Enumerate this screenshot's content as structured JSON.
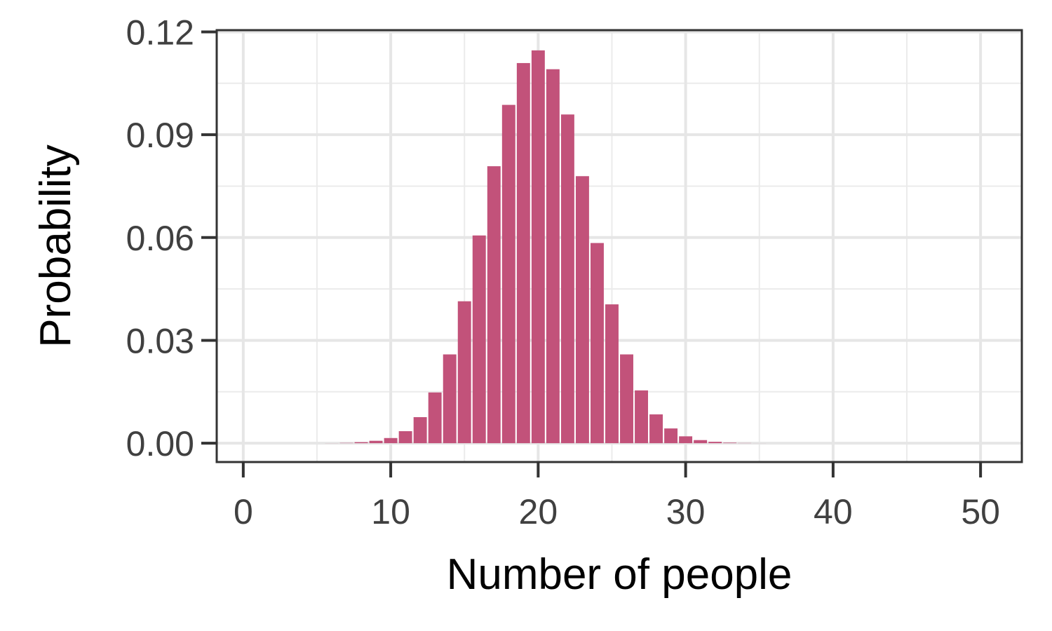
{
  "chart_data": {
    "type": "bar",
    "xlabel": "Number of people",
    "ylabel": "Probability",
    "xlim": [
      -1.8,
      52.8
    ],
    "ylim": [
      -0.0055,
      0.1205
    ],
    "x_ticks": [
      0,
      10,
      20,
      30,
      40,
      50
    ],
    "x_tick_labels": [
      "0",
      "10",
      "20",
      "30",
      "40",
      "50"
    ],
    "y_ticks": [
      0,
      0.03,
      0.06,
      0.09,
      0.12
    ],
    "y_tick_labels": [
      "0.00",
      "0.03",
      "0.06",
      "0.09",
      "0.12"
    ],
    "grid": true,
    "bar_color": "#C2527A",
    "x": [
      0,
      1,
      2,
      3,
      4,
      5,
      6,
      7,
      8,
      9,
      10,
      11,
      12,
      13,
      14,
      15,
      16,
      17,
      18,
      19,
      20,
      21,
      22,
      23,
      24,
      25,
      26,
      27,
      28,
      29,
      30,
      31,
      32,
      33,
      34,
      35,
      36,
      37,
      38,
      39,
      40,
      41,
      42,
      43,
      44,
      45,
      46,
      47,
      48,
      49,
      50
    ],
    "values": [
      0,
      0,
      0,
      0,
      0,
      0,
      2e-05,
      8e-05,
      0.0003,
      0.0007,
      0.0015,
      0.0035,
      0.0076,
      0.0148,
      0.0259,
      0.0414,
      0.0606,
      0.0808,
      0.0987,
      0.1109,
      0.1146,
      0.1091,
      0.0959,
      0.0779,
      0.0584,
      0.0405,
      0.0259,
      0.0154,
      0.0084,
      0.0043,
      0.002,
      0.0009,
      0.0004,
      0.00015,
      5e-05,
      1e-05,
      0,
      0,
      0,
      0,
      0,
      0,
      0,
      0,
      0,
      0,
      0,
      0,
      0,
      0,
      0
    ]
  }
}
